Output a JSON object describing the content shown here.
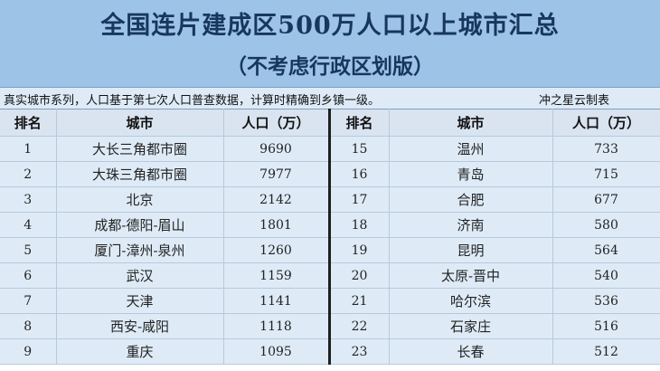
{
  "title": "全国连片建成区500万人口以上城市汇总",
  "subtitle": "（不考虑行政区划版）",
  "note": "真实城市系列，人口基于第七次人口普查数据，计算时精确到乡镇一级。",
  "author": "冲之星云制表",
  "headers": {
    "rank": "排名",
    "city": "城市",
    "pop": "人口（万）"
  },
  "rows": [
    {
      "l": {
        "rank": "1",
        "city": "大长三角都市圈",
        "pop": "9690"
      },
      "r": {
        "rank": "15",
        "city": "温州",
        "pop": "733"
      }
    },
    {
      "l": {
        "rank": "2",
        "city": "大珠三角都市圈",
        "pop": "7977"
      },
      "r": {
        "rank": "16",
        "city": "青岛",
        "pop": "715"
      }
    },
    {
      "l": {
        "rank": "3",
        "city": "北京",
        "pop": "2142"
      },
      "r": {
        "rank": "17",
        "city": "合肥",
        "pop": "677"
      }
    },
    {
      "l": {
        "rank": "4",
        "city": "成都-德阳-眉山",
        "pop": "1801"
      },
      "r": {
        "rank": "18",
        "city": "济南",
        "pop": "580"
      }
    },
    {
      "l": {
        "rank": "5",
        "city": "厦门-漳州-泉州",
        "pop": "1260"
      },
      "r": {
        "rank": "19",
        "city": "昆明",
        "pop": "564"
      }
    },
    {
      "l": {
        "rank": "6",
        "city": "武汉",
        "pop": "1159"
      },
      "r": {
        "rank": "20",
        "city": "太原-晋中",
        "pop": "540"
      }
    },
    {
      "l": {
        "rank": "7",
        "city": "天津",
        "pop": "1141"
      },
      "r": {
        "rank": "21",
        "city": "哈尔滨",
        "pop": "536"
      }
    },
    {
      "l": {
        "rank": "8",
        "city": "西安-咸阳",
        "pop": "1118"
      },
      "r": {
        "rank": "22",
        "city": "石家庄",
        "pop": "516"
      }
    },
    {
      "l": {
        "rank": "9",
        "city": "重庆",
        "pop": "1095"
      },
      "r": {
        "rank": "23",
        "city": "长春",
        "pop": "512"
      }
    }
  ]
}
